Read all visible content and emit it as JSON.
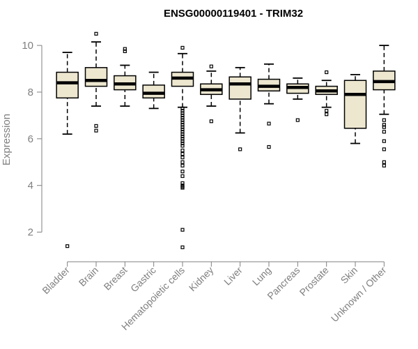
{
  "chart_data": {
    "type": "box",
    "title": "ENSG00000119401 - TRIM32",
    "xlabel": "",
    "ylabel": "Expression",
    "ylim": [
      1.0,
      10.75
    ],
    "yticks": [
      2,
      4,
      6,
      8,
      10
    ],
    "grid": false,
    "legend": "none",
    "colors": {
      "box_fill": "#ede7d0",
      "stroke": "#000000",
      "axis": "#7f7f7f",
      "text": "#7f7f7f"
    },
    "categories": [
      "Bladder",
      "Brain",
      "Breast",
      "Gastric",
      "Hematopoietic cells",
      "Kidney",
      "Liver",
      "Lung",
      "Pancreas",
      "Prostate",
      "Skin",
      "Unknown / Other"
    ],
    "boxes": [
      {
        "category": "Bladder",
        "whisker_low": 6.2,
        "q1": 7.75,
        "median": 8.4,
        "q3": 8.85,
        "whisker_high": 9.7,
        "outliers": [
          1.4
        ]
      },
      {
        "category": "Brain",
        "whisker_low": 7.4,
        "q1": 8.25,
        "median": 8.5,
        "q3": 9.05,
        "whisker_high": 10.15,
        "outliers": [
          10.5,
          6.55,
          6.35
        ]
      },
      {
        "category": "Breast",
        "whisker_low": 7.4,
        "q1": 8.1,
        "median": 8.35,
        "q3": 8.7,
        "whisker_high": 9.15,
        "outliers": [
          9.85,
          9.75
        ]
      },
      {
        "category": "Gastric",
        "whisker_low": 7.3,
        "q1": 7.75,
        "median": 7.95,
        "q3": 8.3,
        "whisker_high": 8.85,
        "outliers": []
      },
      {
        "category": "Hematopoietic cells",
        "whisker_low": 7.35,
        "q1": 8.25,
        "median": 8.6,
        "q3": 8.85,
        "whisker_high": 9.65,
        "outliers": [
          9.9,
          7.3,
          7.2,
          7.1,
          7.0,
          6.9,
          6.8,
          6.7,
          6.6,
          6.5,
          6.4,
          6.3,
          6.2,
          6.1,
          6.0,
          5.9,
          5.8,
          5.7,
          5.5,
          5.35,
          5.2,
          5.0,
          4.85,
          4.6,
          4.4,
          4.1,
          4.0,
          3.95,
          3.9,
          2.1,
          1.35
        ]
      },
      {
        "category": "Kidney",
        "whisker_low": 7.4,
        "q1": 7.9,
        "median": 8.1,
        "q3": 8.35,
        "whisker_high": 8.9,
        "outliers": [
          9.1,
          6.75
        ]
      },
      {
        "category": "Liver",
        "whisker_low": 6.25,
        "q1": 7.7,
        "median": 8.35,
        "q3": 8.65,
        "whisker_high": 9.05,
        "outliers": [
          5.55
        ]
      },
      {
        "category": "Lung",
        "whisker_low": 7.5,
        "q1": 8.05,
        "median": 8.25,
        "q3": 8.55,
        "whisker_high": 9.2,
        "outliers": [
          6.65,
          5.65
        ]
      },
      {
        "category": "Pancreas",
        "whisker_low": 7.7,
        "q1": 7.95,
        "median": 8.2,
        "q3": 8.35,
        "whisker_high": 8.6,
        "outliers": [
          6.8
        ]
      },
      {
        "category": "Prostate",
        "whisker_low": 7.35,
        "q1": 7.9,
        "median": 8.05,
        "q3": 8.25,
        "whisker_high": 8.5,
        "outliers": [
          8.85,
          7.2,
          7.05
        ]
      },
      {
        "category": "Skin",
        "whisker_low": 5.8,
        "q1": 6.45,
        "median": 7.9,
        "q3": 8.5,
        "whisker_high": 8.75,
        "outliers": []
      },
      {
        "category": "Unknown / Other",
        "whisker_low": 7.05,
        "q1": 8.1,
        "median": 8.45,
        "q3": 8.9,
        "whisker_high": 10.0,
        "outliers": [
          6.8,
          6.6,
          6.5,
          6.3,
          5.9,
          5.55,
          5.0,
          4.85
        ]
      }
    ]
  }
}
